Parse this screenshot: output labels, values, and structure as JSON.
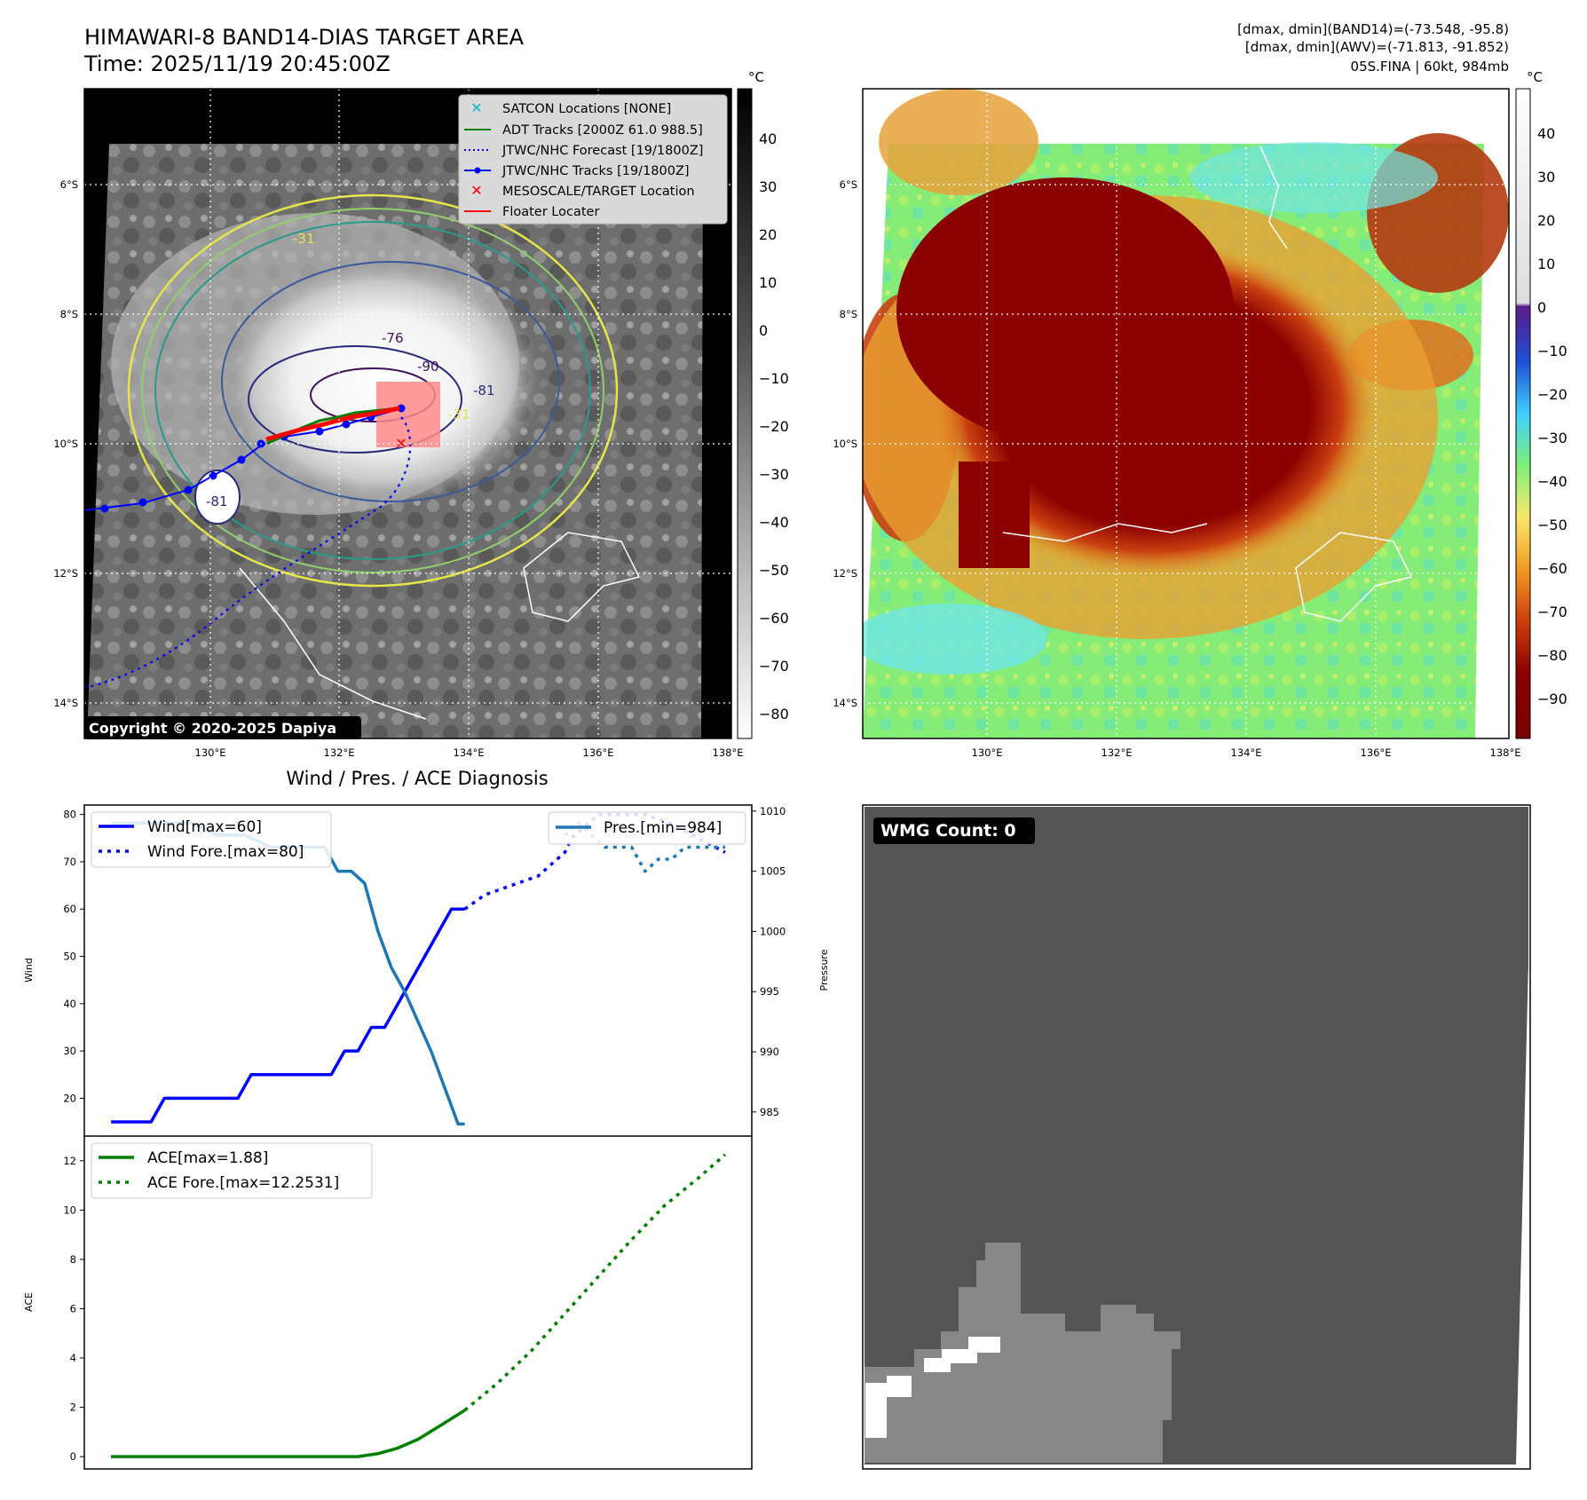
{
  "header": {
    "title_line1": "HIMAWARI-8 BAND14-DIAS TARGET AREA",
    "title_line2": "Time: 2025/11/19 20:45:00Z",
    "info_line1": "[dmax, dmin](BAND14)=(-73.548, -95.8)",
    "info_line2": "[dmax, dmin](AWV)=(-71.813, -91.852)",
    "info_line3": "05S.FINA | 60kt, 984mb"
  },
  "map_axes": {
    "lon_ticks": [
      "130°E",
      "132°E",
      "134°E",
      "136°E",
      "138°E"
    ],
    "lat_ticks": [
      "6°S",
      "8°S",
      "10°S",
      "12°S",
      "14°S"
    ]
  },
  "ir_panel": {
    "legend": [
      {
        "label": "SATCON Locations [NONE]",
        "color": "#00bfbf",
        "style": "x"
      },
      {
        "label": "ADT Tracks [2000Z 61.0 988.5]",
        "color": "#008000",
        "style": "solid"
      },
      {
        "label": "JTWC/NHC Forecast [19/1800Z]",
        "color": "#0000ff",
        "style": "dotted"
      },
      {
        "label": "JTWC/NHC Tracks [19/1800Z]",
        "color": "#0000ff",
        "style": "dotline"
      },
      {
        "label": "MESOSCALE/TARGET Location",
        "color": "#ff0000",
        "style": "x"
      },
      {
        "label": "Floater Locater",
        "color": "#ff0000",
        "style": "solid"
      }
    ],
    "copyright": "Copyright © 2020-2025 Dapiya",
    "contour_labels": [
      "-76",
      "-90",
      "-81",
      "-81",
      "-31",
      "-31"
    ],
    "colorbar_unit": "°C",
    "colorbar_ticks": [
      "40",
      "30",
      "20",
      "10",
      "0",
      "−10",
      "−20",
      "−30",
      "−40",
      "−50",
      "−60",
      "−70",
      "−80"
    ]
  },
  "awv_panel": {
    "colorbar_unit": "°C",
    "colorbar_ticks": [
      "40",
      "30",
      "20",
      "10",
      "0",
      "−10",
      "−20",
      "−30",
      "−40",
      "−50",
      "−60",
      "−70",
      "−80",
      "−90"
    ]
  },
  "wmg_panel": {
    "badge": "WMG Count: 0"
  },
  "chart_data": [
    {
      "type": "line",
      "title": "Wind / Pres. / ACE Diagnosis",
      "ylabel": "Wind",
      "ylim": [
        12,
        82
      ],
      "y_ticks": [
        20,
        30,
        40,
        50,
        60,
        70,
        80
      ],
      "xlim": [
        0,
        1
      ],
      "series": [
        {
          "name": "Wind[max=60]",
          "color": "#0000ff",
          "style": "solid",
          "x": [
            0.04,
            0.1,
            0.12,
            0.23,
            0.25,
            0.37,
            0.39,
            0.41,
            0.43,
            0.45,
            0.55,
            0.57
          ],
          "y": [
            15,
            15,
            20,
            20,
            25,
            25,
            30,
            30,
            35,
            35,
            60,
            60
          ]
        },
        {
          "name": "Wind Fore.[max=80]",
          "color": "#0000ff",
          "style": "dotted",
          "x": [
            0.57,
            0.6,
            0.64,
            0.68,
            0.72,
            0.73,
            0.77,
            0.8,
            0.84,
            0.88,
            0.92,
            0.96
          ],
          "y": [
            60,
            63,
            65,
            67,
            72,
            75,
            80,
            80,
            80,
            78,
            75,
            72
          ]
        }
      ],
      "legend": [
        "Wind[max=60]",
        "Wind Fore.[max=80]"
      ]
    },
    {
      "type": "line",
      "ylabel": "Pressure",
      "ylim": [
        983,
        1010.5
      ],
      "y_ticks": [
        985,
        990,
        995,
        1000,
        1005,
        1010
      ],
      "xlim": [
        0,
        1
      ],
      "series": [
        {
          "name": "Pres.[min=984]",
          "color": "#1f77b4",
          "style": "solid",
          "x": [
            0.04,
            0.1,
            0.12,
            0.16,
            0.2,
            0.24,
            0.28,
            0.32,
            0.36,
            0.38,
            0.4,
            0.42,
            0.44,
            0.46,
            0.48,
            0.52,
            0.54,
            0.56,
            0.57
          ],
          "y": [
            1009,
            1009,
            1009,
            1009,
            1008,
            1008,
            1007,
            1007,
            1007,
            1005,
            1005,
            1004,
            1000,
            997,
            995,
            990,
            987,
            984,
            984
          ]
        },
        {
          "name": "Pres. Fore.",
          "color": "#1f77b4",
          "style": "dotted",
          "x": [
            0.72,
            0.74,
            0.76,
            0.78,
            0.8,
            0.82,
            0.84,
            0.86,
            0.88,
            0.9,
            0.92,
            0.94,
            0.96
          ],
          "y": [
            1008,
            1009,
            1008,
            1007,
            1007,
            1007,
            1005,
            1006,
            1006,
            1007,
            1007,
            1007,
            1007
          ]
        }
      ],
      "legend": [
        "Pres.[min=984]"
      ]
    },
    {
      "type": "line",
      "ylabel": "ACE",
      "ylim": [
        -0.5,
        13
      ],
      "y_ticks": [
        0,
        2,
        4,
        6,
        8,
        10,
        12
      ],
      "xlim": [
        0,
        1
      ],
      "series": [
        {
          "name": "ACE[max=1.88]",
          "color": "#008000",
          "style": "solid",
          "x": [
            0.04,
            0.2,
            0.4,
            0.41,
            0.44,
            0.47,
            0.5,
            0.53,
            0.57
          ],
          "y": [
            0,
            0,
            0,
            0,
            0.12,
            0.35,
            0.7,
            1.2,
            1.88
          ]
        },
        {
          "name": "ACE Fore.[max=12.2531]",
          "color": "#008000",
          "style": "dotted",
          "x": [
            0.57,
            0.62,
            0.67,
            0.72,
            0.77,
            0.82,
            0.87,
            0.92,
            0.96
          ],
          "y": [
            1.88,
            3.0,
            4.3,
            5.8,
            7.3,
            8.8,
            10.2,
            11.3,
            12.25
          ]
        }
      ],
      "legend": [
        "ACE[max=1.88]",
        "ACE Fore.[max=12.2531]"
      ]
    }
  ]
}
